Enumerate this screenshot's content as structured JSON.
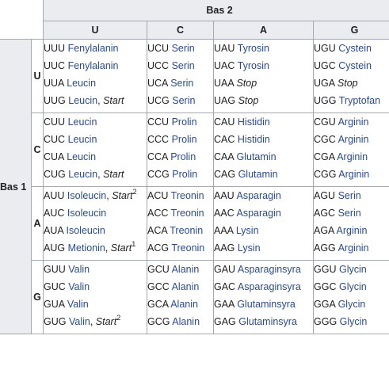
{
  "header": {
    "bas2": "Bas 2",
    "bas1": "Bas 1",
    "columns": [
      "U",
      "C",
      "A",
      "G"
    ]
  },
  "rows": [
    {
      "label": "U",
      "cells": [
        [
          {
            "codon": "UUU",
            "aa": "Fenylalanin"
          },
          {
            "codon": "UUC",
            "aa": "Fenylalanin"
          },
          {
            "codon": "UUA",
            "aa": "Leucin"
          },
          {
            "codon": "UUG",
            "aa": "Leucin",
            "note": "Start"
          }
        ],
        [
          {
            "codon": "UCU",
            "aa": "Serin"
          },
          {
            "codon": "UCC",
            "aa": "Serin"
          },
          {
            "codon": "UCA",
            "aa": "Serin"
          },
          {
            "codon": "UCG",
            "aa": "Serin"
          }
        ],
        [
          {
            "codon": "UAU",
            "aa": "Tyrosin"
          },
          {
            "codon": "UAC",
            "aa": "Tyrosin"
          },
          {
            "codon": "UAA",
            "stop": "Stop"
          },
          {
            "codon": "UAG",
            "stop": "Stop"
          }
        ],
        [
          {
            "codon": "UGU",
            "aa": "Cystein"
          },
          {
            "codon": "UGC",
            "aa": "Cystein"
          },
          {
            "codon": "UGA",
            "stop": "Stop"
          },
          {
            "codon": "UGG",
            "aa": "Tryptofan"
          }
        ]
      ]
    },
    {
      "label": "C",
      "cells": [
        [
          {
            "codon": "CUU",
            "aa": "Leucin"
          },
          {
            "codon": "CUC",
            "aa": "Leucin"
          },
          {
            "codon": "CUA",
            "aa": "Leucin"
          },
          {
            "codon": "CUG",
            "aa": "Leucin",
            "note": "Start"
          }
        ],
        [
          {
            "codon": "CCU",
            "aa": "Prolin"
          },
          {
            "codon": "CCC",
            "aa": "Prolin"
          },
          {
            "codon": "CCA",
            "aa": "Prolin"
          },
          {
            "codon": "CCG",
            "aa": "Prolin"
          }
        ],
        [
          {
            "codon": "CAU",
            "aa": "Histidin"
          },
          {
            "codon": "CAC",
            "aa": "Histidin"
          },
          {
            "codon": "CAA",
            "aa": "Glutamin"
          },
          {
            "codon": "CAG",
            "aa": "Glutamin"
          }
        ],
        [
          {
            "codon": "CGU",
            "aa": "Arginin"
          },
          {
            "codon": "CGC",
            "aa": "Arginin"
          },
          {
            "codon": "CGA",
            "aa": "Arginin"
          },
          {
            "codon": "CGG",
            "aa": "Arginin"
          }
        ]
      ]
    },
    {
      "label": "A",
      "cells": [
        [
          {
            "codon": "AUU",
            "aa": "Isoleucin",
            "note": "Start",
            "sup": "2"
          },
          {
            "codon": "AUC",
            "aa": "Isoleucin"
          },
          {
            "codon": "AUA",
            "aa": "Isoleucin"
          },
          {
            "codon": "AUG",
            "aa": "Metionin",
            "note": "Start",
            "sup": "1"
          }
        ],
        [
          {
            "codon": "ACU",
            "aa": "Treonin"
          },
          {
            "codon": "ACC",
            "aa": "Treonin"
          },
          {
            "codon": "ACA",
            "aa": "Treonin"
          },
          {
            "codon": "ACG",
            "aa": "Treonin"
          }
        ],
        [
          {
            "codon": "AAU",
            "aa": "Asparagin"
          },
          {
            "codon": "AAC",
            "aa": "Asparagin"
          },
          {
            "codon": "AAA",
            "aa": "Lysin"
          },
          {
            "codon": "AAG",
            "aa": "Lysin"
          }
        ],
        [
          {
            "codon": "AGU",
            "aa": "Serin"
          },
          {
            "codon": "AGC",
            "aa": "Serin"
          },
          {
            "codon": "AGA",
            "aa": "Arginin"
          },
          {
            "codon": "AGG",
            "aa": "Arginin"
          }
        ]
      ]
    },
    {
      "label": "G",
      "cells": [
        [
          {
            "codon": "GUU",
            "aa": "Valin"
          },
          {
            "codon": "GUC",
            "aa": "Valin"
          },
          {
            "codon": "GUA",
            "aa": "Valin"
          },
          {
            "codon": "GUG",
            "aa": "Valin",
            "note": "Start",
            "sup": "2"
          }
        ],
        [
          {
            "codon": "GCU",
            "aa": "Alanin"
          },
          {
            "codon": "GCC",
            "aa": "Alanin"
          },
          {
            "codon": "GCA",
            "aa": "Alanin"
          },
          {
            "codon": "GCG",
            "aa": "Alanin"
          }
        ],
        [
          {
            "codon": "GAU",
            "aa": "Asparaginsyra"
          },
          {
            "codon": "GAC",
            "aa": "Asparaginsyra"
          },
          {
            "codon": "GAA",
            "aa": "Glutaminsyra"
          },
          {
            "codon": "GAG",
            "aa": "Glutaminsyra"
          }
        ],
        [
          {
            "codon": "GGU",
            "aa": "Glycin"
          },
          {
            "codon": "GGC",
            "aa": "Glycin"
          },
          {
            "codon": "GGA",
            "aa": "Glycin"
          },
          {
            "codon": "GGG",
            "aa": "Glycin"
          }
        ]
      ]
    }
  ],
  "colors": {
    "link": "#2a4b8d",
    "text": "#202122",
    "header_bg": "#eaecf0",
    "border": "#a2a9b1"
  }
}
